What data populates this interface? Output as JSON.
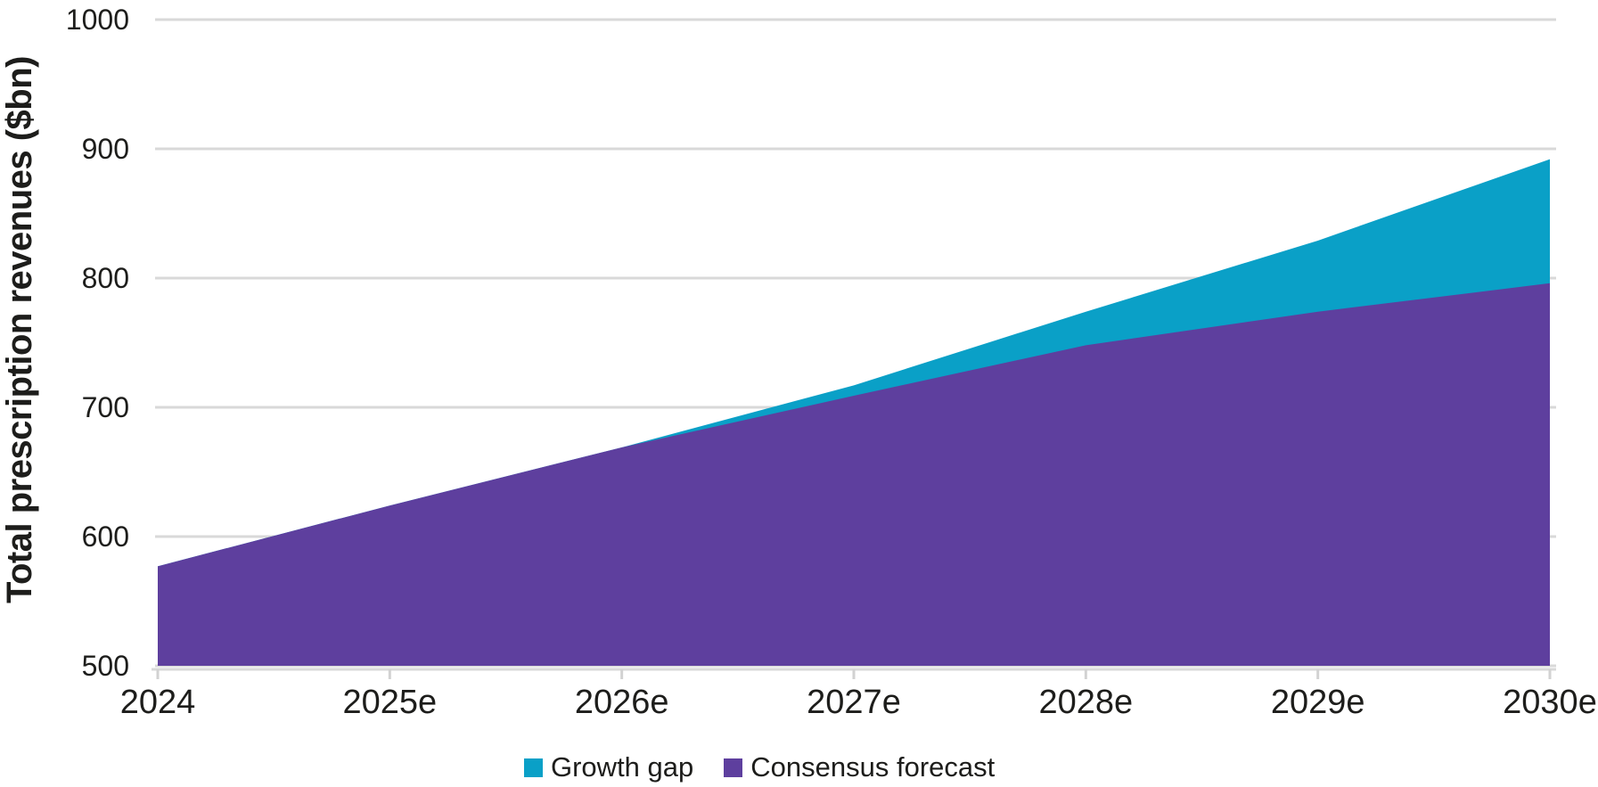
{
  "page": {
    "background": "#ffffff",
    "text_color": "#1d1d1b"
  },
  "chart_data": {
    "type": "area",
    "stacked": true,
    "title": "",
    "xlabel": "",
    "ylabel": "Total prescription revenues ($bn)",
    "categories": [
      "2024",
      "2025e",
      "2026e",
      "2027e",
      "2028e",
      "2029e",
      "2030e"
    ],
    "series": [
      {
        "name": "Growth gap",
        "color": "#0aa0c7",
        "values": [
          0,
          0,
          0,
          8,
          26,
          55,
          96
        ]
      },
      {
        "name": "Consensus forecast",
        "color": "#5e3f9e",
        "values": [
          577,
          624,
          669,
          709,
          748,
          774,
          796
        ]
      }
    ],
    "stack_order": [
      1,
      0
    ],
    "total_values": [
      577,
      624,
      669,
      717,
      774,
      829,
      892
    ],
    "ylim": [
      500,
      1000
    ],
    "yticks": [
      500,
      600,
      700,
      800,
      900,
      1000
    ],
    "grid": "horizontal",
    "grid_color": "#d9d9d9",
    "axis_color": "#d9d9d9",
    "tick_color": "#d2d2d2",
    "legend_position": "bottom"
  }
}
